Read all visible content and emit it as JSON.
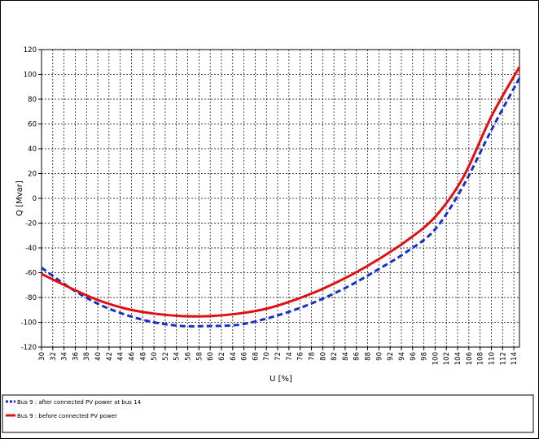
{
  "chart_data": {
    "type": "line",
    "title": "",
    "xlabel": "U [%]",
    "ylabel": "Q [Mvar]",
    "xlim": [
      30,
      115
    ],
    "ylim": [
      -120,
      120
    ],
    "x_ticks": [
      30,
      32,
      34,
      36,
      38,
      40,
      42,
      44,
      46,
      48,
      50,
      52,
      54,
      56,
      58,
      60,
      62,
      64,
      66,
      68,
      70,
      72,
      74,
      76,
      78,
      80,
      82,
      84,
      86,
      88,
      90,
      92,
      94,
      96,
      98,
      100,
      102,
      104,
      106,
      108,
      110,
      112,
      114
    ],
    "y_ticks": [
      120,
      100,
      80,
      60,
      40,
      20,
      0,
      -20,
      -40,
      -60,
      -80,
      -100,
      -120
    ],
    "grid": true,
    "legend_position": "bottom",
    "series": [
      {
        "name": "Bus 9 : after connected PV power at bus 14",
        "color": "#1a2fc8",
        "style": "dashed",
        "x": [
          30,
          35,
          40,
          45,
          50,
          55,
          60,
          65,
          70,
          75,
          80,
          85,
          90,
          95,
          100,
          105,
          110,
          115
        ],
        "y": [
          -56,
          -72,
          -85,
          -94,
          -100,
          -103,
          -103,
          -102,
          -97,
          -90,
          -81,
          -70,
          -57,
          -43,
          -25,
          10,
          55,
          97
        ]
      },
      {
        "name": "Bus 9 : before connected PV power",
        "color": "#e01010",
        "style": "solid",
        "x": [
          30,
          35,
          40,
          45,
          50,
          55,
          60,
          65,
          70,
          75,
          80,
          85,
          90,
          95,
          100,
          105,
          110,
          115
        ],
        "y": [
          -61,
          -72,
          -82,
          -89,
          -93,
          -95,
          -95,
          -93,
          -89,
          -82,
          -73,
          -62,
          -49,
          -34,
          -15,
          17,
          66,
          106
        ]
      }
    ]
  }
}
